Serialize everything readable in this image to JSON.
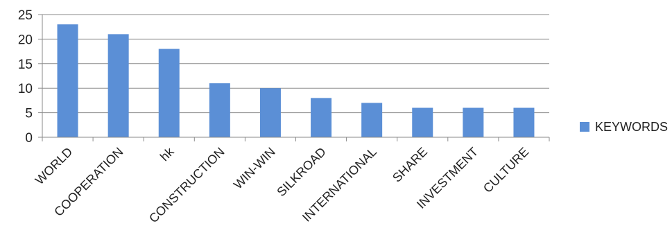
{
  "chart_data": {
    "type": "bar",
    "categories": [
      "WORLD",
      "COOPERATION",
      "hk",
      "CONSTRUCTION",
      "WIN-WIN",
      "SILKROAD",
      "INTERNATIONAL",
      "SHARE",
      "INVESTMENT",
      "CULTURE"
    ],
    "series": [
      {
        "name": "KEYWORDS",
        "values": [
          23,
          21,
          18,
          11,
          10,
          8,
          7,
          6,
          6,
          6
        ],
        "color": "#5b8fd6"
      }
    ],
    "yticks": [
      "0",
      "5",
      "10",
      "15",
      "20",
      "25"
    ],
    "ylim": [
      0,
      25
    ],
    "grid": true,
    "legend": "right"
  }
}
